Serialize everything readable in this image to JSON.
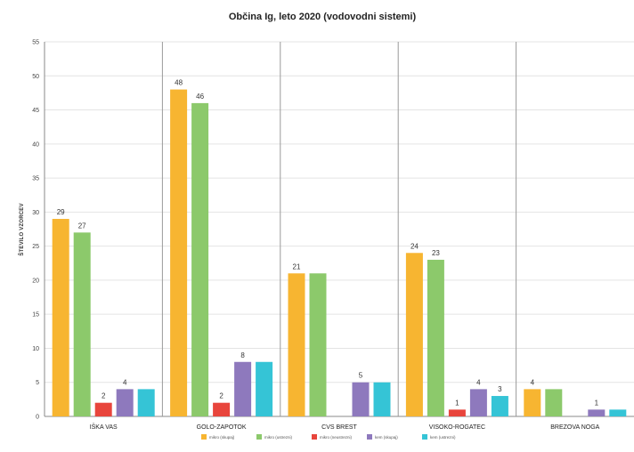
{
  "chart_data": {
    "type": "bar",
    "title": "Občina Ig, leto 2020 (vodovodni sistemi)",
    "ylabel": "ŠTEVILO VZORCEV",
    "xlabel": "",
    "ylim": [
      0,
      55
    ],
    "yticks": [
      0,
      5,
      10,
      15,
      20,
      25,
      30,
      35,
      40,
      45,
      50,
      55
    ],
    "categories": [
      "IŠKA VAS",
      "GOLO-ZAPOTOK",
      "CVS BREST",
      "VISOKO-ROGATEC",
      "BREZOVA NOGA"
    ],
    "legend_position": "bottom",
    "series": [
      {
        "name": "mikro (skupaj)",
        "color": "#f7b531",
        "values": [
          29,
          48,
          21,
          24,
          4
        ],
        "labels": [
          "29",
          "48",
          "21",
          "24",
          "4"
        ]
      },
      {
        "name": "mikro (ustrezni)",
        "color": "#8cc96b",
        "values": [
          27,
          46,
          21,
          23,
          4
        ],
        "labels": [
          "27",
          "46",
          "",
          "23",
          ""
        ]
      },
      {
        "name": "mikro (neustrezni)",
        "color": "#e8453c",
        "values": [
          2,
          2,
          0,
          1,
          0
        ],
        "labels": [
          "2",
          "2",
          "",
          "1",
          ""
        ]
      },
      {
        "name": "kem (skupaj)",
        "color": "#8e79bd",
        "values": [
          4,
          8,
          5,
          4,
          1
        ],
        "labels": [
          "4",
          "8",
          "5",
          "4",
          "1"
        ]
      },
      {
        "name": "kem (ustrezni)",
        "color": "#35c4d6",
        "values": [
          4,
          8,
          5,
          3,
          1
        ],
        "labels": [
          "",
          "",
          "",
          "3",
          ""
        ]
      }
    ]
  }
}
